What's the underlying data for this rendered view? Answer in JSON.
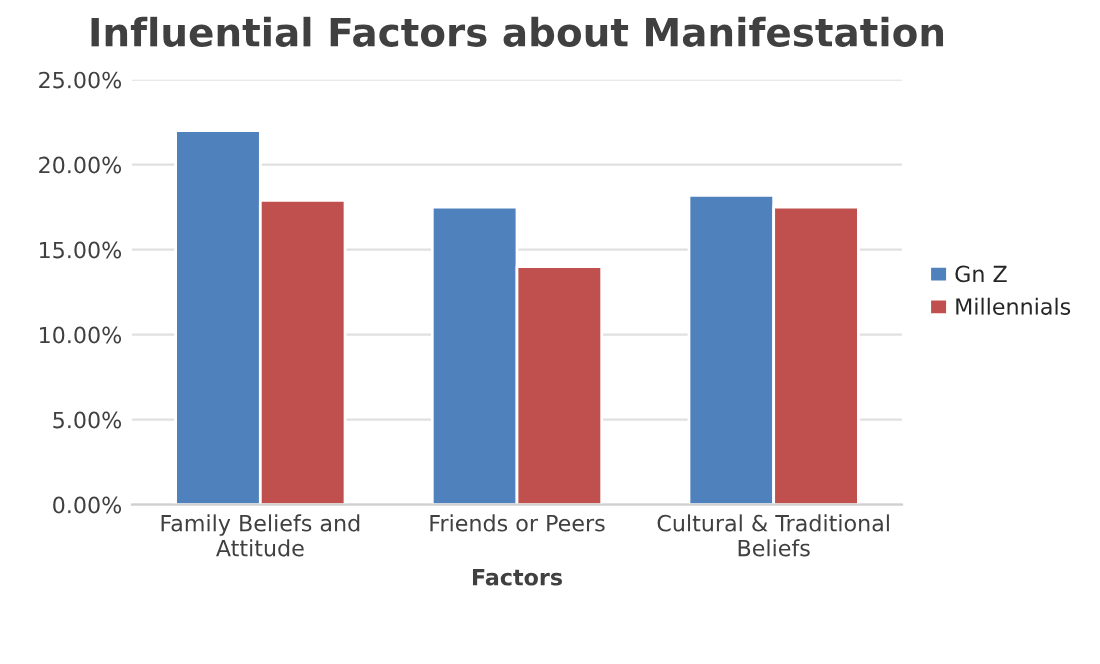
{
  "chart_data": {
    "type": "bar",
    "title": "Influential Factors about Manifestation",
    "xlabel": "Factors",
    "categories": [
      "Family Beliefs and\nAttitude",
      "Friends or Peers",
      "Cultural & Traditional\nBeliefs"
    ],
    "series": [
      {
        "name": "Gn Z",
        "color": "#4f81bd",
        "values": [
          22.0,
          17.5,
          18.2
        ]
      },
      {
        "name": "Millennials",
        "color": "#c0504d",
        "values": [
          17.9,
          14.0,
          17.5
        ]
      }
    ],
    "ylim": [
      0,
      25
    ],
    "yticks": [
      {
        "value": 0,
        "label": "0.00%"
      },
      {
        "value": 5,
        "label": "5.00%"
      },
      {
        "value": 10,
        "label": "10.00%"
      },
      {
        "value": 15,
        "label": "15.00%"
      },
      {
        "value": 20,
        "label": "20.00%"
      },
      {
        "value": 25,
        "label": "25.00%"
      }
    ],
    "grid": "y",
    "legend": "right"
  }
}
